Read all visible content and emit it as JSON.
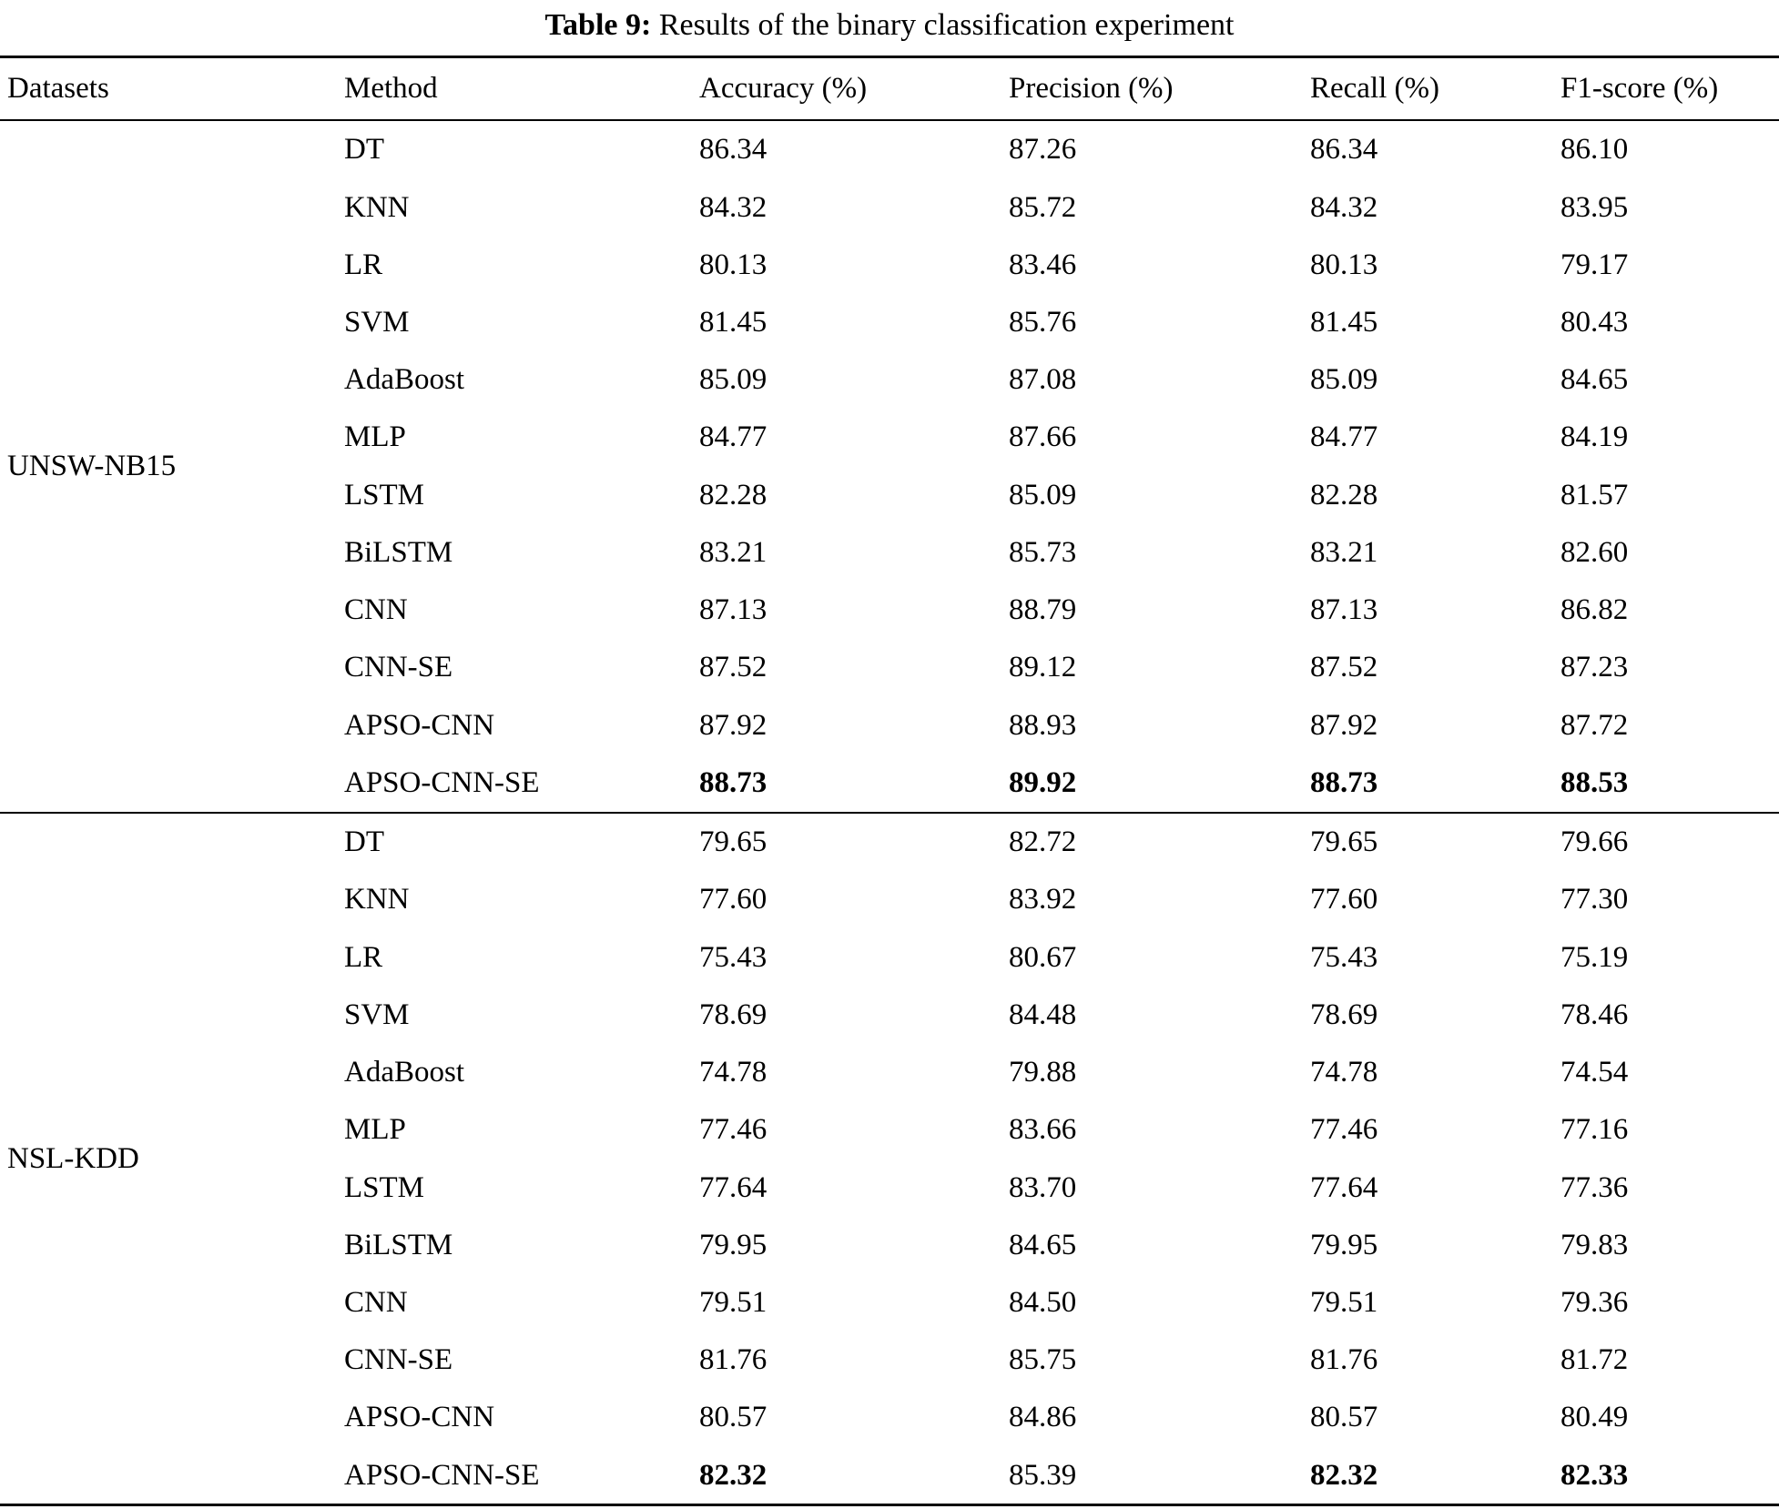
{
  "caption": {
    "label": "Table 9:",
    "text": " Results of the binary classification experiment"
  },
  "table": {
    "columns": [
      "Datasets",
      "Method",
      "Accuracy (%)",
      "Precision (%)",
      "Recall (%)",
      "F1-score (%)"
    ],
    "sections": [
      {
        "dataset": "UNSW-NB15",
        "rows": [
          {
            "method": "DT",
            "accuracy": "86.34",
            "precision": "87.26",
            "recall": "86.34",
            "f1": "86.10",
            "bold": []
          },
          {
            "method": "KNN",
            "accuracy": "84.32",
            "precision": "85.72",
            "recall": "84.32",
            "f1": "83.95",
            "bold": []
          },
          {
            "method": "LR",
            "accuracy": "80.13",
            "precision": "83.46",
            "recall": "80.13",
            "f1": "79.17",
            "bold": []
          },
          {
            "method": "SVM",
            "accuracy": "81.45",
            "precision": "85.76",
            "recall": "81.45",
            "f1": "80.43",
            "bold": []
          },
          {
            "method": "AdaBoost",
            "accuracy": "85.09",
            "precision": "87.08",
            "recall": "85.09",
            "f1": "84.65",
            "bold": []
          },
          {
            "method": "MLP",
            "accuracy": "84.77",
            "precision": "87.66",
            "recall": "84.77",
            "f1": "84.19",
            "bold": []
          },
          {
            "method": "LSTM",
            "accuracy": "82.28",
            "precision": "85.09",
            "recall": "82.28",
            "f1": "81.57",
            "bold": []
          },
          {
            "method": "BiLSTM",
            "accuracy": "83.21",
            "precision": "85.73",
            "recall": "83.21",
            "f1": "82.60",
            "bold": []
          },
          {
            "method": "CNN",
            "accuracy": "87.13",
            "precision": "88.79",
            "recall": "87.13",
            "f1": "86.82",
            "bold": []
          },
          {
            "method": "CNN-SE",
            "accuracy": "87.52",
            "precision": "89.12",
            "recall": "87.52",
            "f1": "87.23",
            "bold": []
          },
          {
            "method": "APSO-CNN",
            "accuracy": "87.92",
            "precision": "88.93",
            "recall": "87.92",
            "f1": "87.72",
            "bold": []
          },
          {
            "method": "APSO-CNN-SE",
            "accuracy": "88.73",
            "precision": "89.92",
            "recall": "88.73",
            "f1": "88.53",
            "bold": [
              "accuracy",
              "precision",
              "recall",
              "f1"
            ]
          }
        ]
      },
      {
        "dataset": "NSL-KDD",
        "rows": [
          {
            "method": "DT",
            "accuracy": "79.65",
            "precision": "82.72",
            "recall": "79.65",
            "f1": "79.66",
            "bold": []
          },
          {
            "method": "KNN",
            "accuracy": "77.60",
            "precision": "83.92",
            "recall": "77.60",
            "f1": "77.30",
            "bold": []
          },
          {
            "method": "LR",
            "accuracy": "75.43",
            "precision": "80.67",
            "recall": "75.43",
            "f1": "75.19",
            "bold": []
          },
          {
            "method": "SVM",
            "accuracy": "78.69",
            "precision": "84.48",
            "recall": "78.69",
            "f1": "78.46",
            "bold": []
          },
          {
            "method": "AdaBoost",
            "accuracy": "74.78",
            "precision": "79.88",
            "recall": "74.78",
            "f1": "74.54",
            "bold": []
          },
          {
            "method": "MLP",
            "accuracy": "77.46",
            "precision": "83.66",
            "recall": "77.46",
            "f1": "77.16",
            "bold": []
          },
          {
            "method": "LSTM",
            "accuracy": "77.64",
            "precision": "83.70",
            "recall": "77.64",
            "f1": "77.36",
            "bold": []
          },
          {
            "method": "BiLSTM",
            "accuracy": "79.95",
            "precision": "84.65",
            "recall": "79.95",
            "f1": "79.83",
            "bold": []
          },
          {
            "method": "CNN",
            "accuracy": "79.51",
            "precision": "84.50",
            "recall": "79.51",
            "f1": "79.36",
            "bold": []
          },
          {
            "method": "CNN-SE",
            "accuracy": "81.76",
            "precision": "85.75",
            "recall": "81.76",
            "f1": "81.72",
            "bold": []
          },
          {
            "method": "APSO-CNN",
            "accuracy": "80.57",
            "precision": "84.86",
            "recall": "80.57",
            "f1": "80.49",
            "bold": []
          },
          {
            "method": "APSO-CNN-SE",
            "accuracy": "82.32",
            "precision": "85.39",
            "recall": "82.32",
            "f1": "82.33",
            "bold": [
              "accuracy",
              "recall",
              "f1"
            ]
          }
        ]
      }
    ]
  }
}
